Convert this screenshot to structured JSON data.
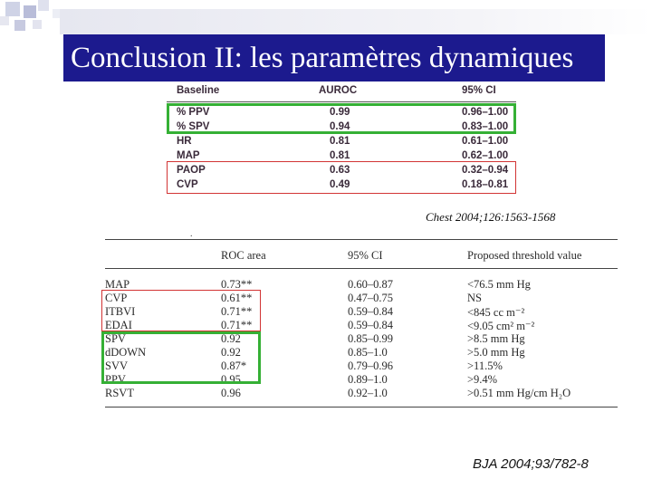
{
  "slide": {
    "title": "Conclusion II: les paramètres dynamiques"
  },
  "table1": {
    "headers": [
      "Baseline",
      "AUROC",
      "95% CI"
    ],
    "rows": [
      [
        "% PPV",
        "0.99",
        "0.96–1.00"
      ],
      [
        "% SPV",
        "0.94",
        "0.83–1.00"
      ],
      [
        "HR",
        "0.81",
        "0.61–1.00"
      ],
      [
        "MAP",
        "0.81",
        "0.62–1.00"
      ],
      [
        "PAOP",
        "0.63",
        "0.32–0.94"
      ],
      [
        "CVP",
        "0.49",
        "0.18–0.81"
      ]
    ],
    "citation": "Chest 2004;126:1563-1568"
  },
  "table2": {
    "headers": [
      "",
      "ROC area",
      "95% CI",
      "Proposed threshold value"
    ],
    "rows": [
      [
        "MAP",
        "0.73**",
        "0.60–0.87",
        "<76.5 mm Hg"
      ],
      [
        "CVP",
        "0.61**",
        "0.47–0.75",
        "NS"
      ],
      [
        "ITBVI",
        "0.71**",
        "0.59–0.84",
        "<845 cc m⁻²"
      ],
      [
        "EDAI",
        "0.71**",
        "0.59–0.84",
        "<9.05 cm² m⁻²"
      ],
      [
        "SPV",
        "0.92",
        "0.85–0.99",
        ">8.5 mm Hg"
      ],
      [
        "dDOWN",
        "0.92",
        "0.85–1.0",
        ">5.0 mm Hg"
      ],
      [
        "SVV",
        "0.87*",
        "0.79–0.96",
        ">11.5%"
      ],
      [
        "PPV",
        "0.95",
        "0.89–1.0",
        ">9.4%"
      ],
      [
        "RSVT",
        "0.96",
        "0.92–1.0",
        ">0.51 mm Hg/cm H₂O"
      ]
    ],
    "citation": "BJA 2004;93/782-8"
  },
  "colors": {
    "title_bg": "#1c1a8e",
    "highlight_green": "#35b035",
    "highlight_red": "#d23434"
  }
}
